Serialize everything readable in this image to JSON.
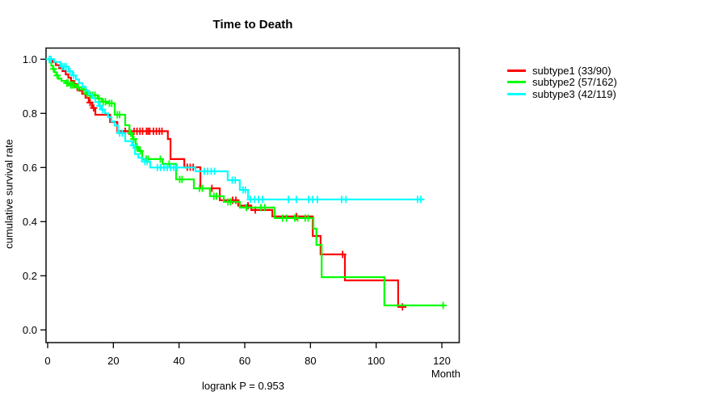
{
  "chart_data": {
    "type": "line",
    "subtype": "kaplan-meier-step",
    "title": "Time to Death",
    "xlabel": "Month",
    "ylabel": "cumulative survival rate",
    "footnote": "logrank P = 0.953",
    "x_ticks": [
      0,
      20,
      40,
      60,
      80,
      100,
      120
    ],
    "y_ticks": [
      0.0,
      0.2,
      0.4,
      0.6,
      0.8,
      1.0
    ],
    "y_tick_labels": [
      "0.0",
      "0.2",
      "0.4",
      "0.6",
      "0.8",
      "1.0"
    ],
    "xlim": [
      0,
      125
    ],
    "ylim": [
      0,
      1
    ],
    "grid": false,
    "legend_position": "right-outside",
    "series": [
      {
        "name": "subtype1",
        "label": "subtype1 (33/90)",
        "events": 33,
        "n": 90,
        "color": "#FF0000",
        "points": [
          [
            0,
            1.0
          ],
          [
            1.5,
            0.989
          ],
          [
            2.5,
            0.978
          ],
          [
            3.5,
            0.967
          ],
          [
            4.5,
            0.956
          ],
          [
            5.5,
            0.944
          ],
          [
            6.3,
            0.932
          ],
          [
            7.1,
            0.92
          ],
          [
            7.9,
            0.908
          ],
          [
            8.7,
            0.896
          ],
          [
            9.5,
            0.884
          ],
          [
            10.5,
            0.872
          ],
          [
            11.5,
            0.858
          ],
          [
            12.5,
            0.84
          ],
          [
            13.5,
            0.82
          ],
          [
            14.5,
            0.795
          ],
          [
            19,
            0.768
          ],
          [
            21.2,
            0.734
          ],
          [
            36.6,
            0.705
          ],
          [
            37.4,
            0.631
          ],
          [
            41.6,
            0.601
          ],
          [
            46.5,
            0.523
          ],
          [
            52.4,
            0.479
          ],
          [
            58,
            0.459
          ],
          [
            62,
            0.443
          ],
          [
            68.4,
            0.419
          ],
          [
            80.7,
            0.347
          ],
          [
            83.1,
            0.279
          ],
          [
            90.5,
            0.183
          ],
          [
            106.7,
            0.085
          ]
        ],
        "end_month": 109.2,
        "censors": [
          [
            8.2,
            0.908
          ],
          [
            9.0,
            0.896
          ],
          [
            12.9,
            0.84
          ],
          [
            14.0,
            0.82
          ],
          [
            23.6,
            0.734
          ],
          [
            24.8,
            0.734
          ],
          [
            26.3,
            0.734
          ],
          [
            27.2,
            0.734
          ],
          [
            28.1,
            0.734
          ],
          [
            28.9,
            0.734
          ],
          [
            30.1,
            0.734
          ],
          [
            30.6,
            0.734
          ],
          [
            31.1,
            0.734
          ],
          [
            32.2,
            0.734
          ],
          [
            33.1,
            0.734
          ],
          [
            34.0,
            0.734
          ],
          [
            34.8,
            0.734
          ],
          [
            42.5,
            0.601
          ],
          [
            43.4,
            0.601
          ],
          [
            44.3,
            0.601
          ],
          [
            50,
            0.523
          ],
          [
            56.3,
            0.479
          ],
          [
            57.3,
            0.479
          ],
          [
            61,
            0.459
          ],
          [
            63.2,
            0.443
          ],
          [
            75.7,
            0.419
          ],
          [
            89.8,
            0.279
          ],
          [
            108,
            0.085
          ]
        ]
      },
      {
        "name": "subtype2",
        "label": "subtype2 (57/162)",
        "events": 57,
        "n": 162,
        "color": "#00FF00",
        "points": [
          [
            0,
            1.0
          ],
          [
            0.6,
            0.988
          ],
          [
            1.1,
            0.976
          ],
          [
            1.6,
            0.964
          ],
          [
            2.1,
            0.952
          ],
          [
            2.6,
            0.94
          ],
          [
            3.2,
            0.928
          ],
          [
            4.2,
            0.92
          ],
          [
            5.4,
            0.912
          ],
          [
            6.6,
            0.905
          ],
          [
            8.8,
            0.896
          ],
          [
            10.4,
            0.888
          ],
          [
            11.6,
            0.872
          ],
          [
            12.6,
            0.867
          ],
          [
            15.2,
            0.855
          ],
          [
            16.4,
            0.843
          ],
          [
            18.3,
            0.837
          ],
          [
            20.4,
            0.795
          ],
          [
            23.6,
            0.756
          ],
          [
            24.9,
            0.727
          ],
          [
            25.8,
            0.705
          ],
          [
            26.8,
            0.676
          ],
          [
            27.7,
            0.661
          ],
          [
            28.8,
            0.631
          ],
          [
            35,
            0.613
          ],
          [
            39.1,
            0.556
          ],
          [
            44.5,
            0.523
          ],
          [
            49.4,
            0.494
          ],
          [
            53.6,
            0.473
          ],
          [
            58.5,
            0.452
          ],
          [
            69.1,
            0.413
          ],
          [
            80.9,
            0.374
          ],
          [
            81.8,
            0.314
          ],
          [
            83.4,
            0.195
          ],
          [
            102.5,
            0.0905
          ]
        ],
        "end_month": 121,
        "censors": [
          [
            1.8,
            0.964
          ],
          [
            2.9,
            0.94
          ],
          [
            5.8,
            0.912
          ],
          [
            6.2,
            0.912
          ],
          [
            7.0,
            0.905
          ],
          [
            7.5,
            0.905
          ],
          [
            8.0,
            0.905
          ],
          [
            9.3,
            0.896
          ],
          [
            11.0,
            0.888
          ],
          [
            12.1,
            0.872
          ],
          [
            13.0,
            0.867
          ],
          [
            13.7,
            0.867
          ],
          [
            14.4,
            0.867
          ],
          [
            15.6,
            0.855
          ],
          [
            16.9,
            0.843
          ],
          [
            17.6,
            0.843
          ],
          [
            18.8,
            0.837
          ],
          [
            19.5,
            0.837
          ],
          [
            21.2,
            0.795
          ],
          [
            21.9,
            0.795
          ],
          [
            25.3,
            0.727
          ],
          [
            26.2,
            0.705
          ],
          [
            27.2,
            0.676
          ],
          [
            28.2,
            0.661
          ],
          [
            30,
            0.631
          ],
          [
            30.6,
            0.631
          ],
          [
            34.3,
            0.631
          ],
          [
            37,
            0.613
          ],
          [
            40.2,
            0.556
          ],
          [
            40.9,
            0.556
          ],
          [
            46.2,
            0.523
          ],
          [
            47.1,
            0.523
          ],
          [
            50.6,
            0.494
          ],
          [
            51.4,
            0.494
          ],
          [
            54.9,
            0.473
          ],
          [
            55.7,
            0.473
          ],
          [
            60.5,
            0.452
          ],
          [
            64.9,
            0.452
          ],
          [
            66.1,
            0.452
          ],
          [
            71.5,
            0.413
          ],
          [
            72.7,
            0.413
          ],
          [
            75.2,
            0.413
          ],
          [
            76.1,
            0.413
          ],
          [
            78.4,
            0.413
          ],
          [
            79.3,
            0.413
          ],
          [
            120.4,
            0.0905
          ]
        ]
      },
      {
        "name": "subtype3",
        "label": "subtype3 (42/119)",
        "events": 42,
        "n": 119,
        "color": "#00FFFF",
        "points": [
          [
            0,
            1.0
          ],
          [
            2,
            0.99
          ],
          [
            3.9,
            0.973
          ],
          [
            6.4,
            0.955
          ],
          [
            7.5,
            0.94
          ],
          [
            8.6,
            0.925
          ],
          [
            9.6,
            0.912
          ],
          [
            10.6,
            0.898
          ],
          [
            11.6,
            0.884
          ],
          [
            12.6,
            0.87
          ],
          [
            13.6,
            0.856
          ],
          [
            14.5,
            0.842
          ],
          [
            15.5,
            0.828
          ],
          [
            16.4,
            0.814
          ],
          [
            17.4,
            0.8
          ],
          [
            18.4,
            0.786
          ],
          [
            19.4,
            0.77
          ],
          [
            20.4,
            0.755
          ],
          [
            21.4,
            0.727
          ],
          [
            23.6,
            0.697
          ],
          [
            25.7,
            0.682
          ],
          [
            26.6,
            0.65
          ],
          [
            27.6,
            0.636
          ],
          [
            28.7,
            0.622
          ],
          [
            31.2,
            0.6
          ],
          [
            45,
            0.586
          ],
          [
            54.8,
            0.553
          ],
          [
            58.5,
            0.517
          ],
          [
            61,
            0.482
          ]
        ],
        "end_month": 114.6,
        "censors": [
          [
            0.5,
            1.0
          ],
          [
            1.0,
            1.0
          ],
          [
            4.4,
            0.973
          ],
          [
            5.0,
            0.973
          ],
          [
            5.6,
            0.973
          ],
          [
            6.8,
            0.955
          ],
          [
            7.9,
            0.94
          ],
          [
            15.9,
            0.828
          ],
          [
            16.7,
            0.814
          ],
          [
            21.9,
            0.727
          ],
          [
            22.7,
            0.727
          ],
          [
            26.1,
            0.682
          ],
          [
            29.6,
            0.622
          ],
          [
            30.3,
            0.622
          ],
          [
            33.4,
            0.6
          ],
          [
            34.4,
            0.6
          ],
          [
            35.4,
            0.6
          ],
          [
            36.4,
            0.6
          ],
          [
            37.4,
            0.6
          ],
          [
            38.4,
            0.6
          ],
          [
            39.4,
            0.6
          ],
          [
            47.7,
            0.586
          ],
          [
            48.7,
            0.586
          ],
          [
            49.8,
            0.586
          ],
          [
            50.8,
            0.586
          ],
          [
            56.2,
            0.553
          ],
          [
            57.1,
            0.553
          ],
          [
            59.5,
            0.517
          ],
          [
            60.2,
            0.517
          ],
          [
            61.7,
            0.482
          ],
          [
            63,
            0.482
          ],
          [
            64.2,
            0.482
          ],
          [
            65.4,
            0.482
          ],
          [
            73.3,
            0.482
          ],
          [
            75.7,
            0.482
          ],
          [
            79.4,
            0.482
          ],
          [
            80.7,
            0.482
          ],
          [
            82.1,
            0.482
          ],
          [
            89.5,
            0.482
          ],
          [
            90.8,
            0.482
          ],
          [
            112.6,
            0.482
          ],
          [
            113.6,
            0.482
          ]
        ]
      }
    ]
  }
}
